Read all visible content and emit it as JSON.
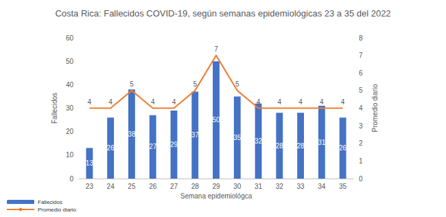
{
  "chart_data": {
    "type": "bar",
    "title": "Costa Rica: Fallecidos COVID-19, según semanas epidemiológicas 23 a 35 del 2022",
    "x_label": "Semana epidemiológca",
    "y_label": "Fallecidos",
    "y2_label": "Promedio diario",
    "categories": [
      "23",
      "24",
      "25",
      "26",
      "27",
      "28",
      "29",
      "30",
      "31",
      "32",
      "33",
      "34",
      "35"
    ],
    "series": [
      {
        "name": "Fallecidos",
        "type": "bar",
        "color": "#4472c4",
        "values": [
          13,
          26,
          38,
          27,
          29,
          37,
          50,
          35,
          32,
          28,
          28,
          31,
          26
        ]
      },
      {
        "name": "Promedio diario",
        "type": "line",
        "color": "#ed7d31",
        "axis": "y2",
        "marker": "none",
        "values": [
          4,
          4,
          5,
          4,
          4,
          5,
          7,
          5,
          4,
          4,
          4,
          4,
          4
        ]
      }
    ],
    "ylim": [
      0,
      60
    ],
    "yticks": [
      0,
      10,
      20,
      30,
      40,
      50,
      60
    ],
    "y2lim": [
      0,
      8
    ],
    "y2ticks": [
      0,
      1,
      2,
      3,
      4,
      5,
      6,
      7,
      8
    ],
    "grid": false,
    "legend": "bottom-left",
    "data_labels": true
  }
}
